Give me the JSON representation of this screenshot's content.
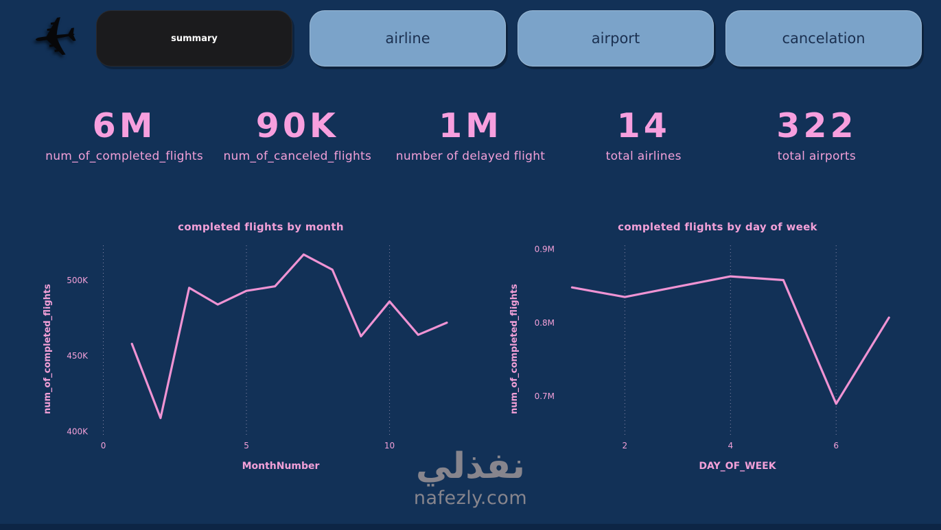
{
  "colors": {
    "background": "#123157",
    "accent_pink": "#f49bdb",
    "tab_blue": "#7ba3c9",
    "tab_active_bg": "#1b1b1d",
    "watermark_gray": "#87858d"
  },
  "nav": {
    "logo_icon": "airplane",
    "tabs": [
      {
        "label": "summary",
        "active": true
      },
      {
        "label": "airline",
        "active": false
      },
      {
        "label": "airport",
        "active": false
      },
      {
        "label": "cancelation",
        "active": false
      }
    ]
  },
  "kpis": [
    {
      "value": "6M",
      "label": "num_of_completed_flights"
    },
    {
      "value": "90K",
      "label": "num_of_canceled_flights"
    },
    {
      "value": "1M",
      "label": "number of delayed flight"
    },
    {
      "value": "14",
      "label": "total airlines"
    },
    {
      "value": "322",
      "label": "total airports"
    }
  ],
  "chart_data": [
    {
      "type": "line",
      "title": "completed flights by month",
      "xlabel": "MonthNumber",
      "ylabel": "num_of_completed_flights",
      "x": [
        1,
        2,
        3,
        4,
        5,
        6,
        7,
        8,
        9,
        10,
        11,
        12
      ],
      "values": [
        458000,
        409000,
        495000,
        484000,
        493000,
        496000,
        517000,
        507000,
        463000,
        486000,
        464000,
        472000
      ],
      "x_ticks": [
        0,
        5,
        10
      ],
      "x_tick_labels": [
        "0",
        "5",
        "10"
      ],
      "y_ticks": [
        400000,
        450000,
        500000
      ],
      "y_tick_labels": [
        "400K",
        "450K",
        "500K"
      ],
      "xlim": [
        -0.3,
        12.6
      ],
      "ylim": [
        398000,
        523000
      ],
      "grid": "vertical-dotted",
      "legend": "none"
    },
    {
      "type": "line",
      "title": "completed flights by day of week",
      "xlabel": "DAY_OF_WEEK",
      "ylabel": "num_of_completed_flights",
      "x": [
        1,
        2,
        3,
        4,
        5,
        6,
        7
      ],
      "values": [
        848000,
        835000,
        849000,
        863000,
        858000,
        690000,
        807000
      ],
      "x_ticks": [
        2,
        4,
        6
      ],
      "x_tick_labels": [
        "2",
        "4",
        "6"
      ],
      "y_ticks": [
        700000,
        800000,
        900000
      ],
      "y_tick_labels": [
        "0.7M",
        "0.8M",
        "0.9M"
      ],
      "xlim": [
        0.8,
        7.4
      ],
      "ylim": [
        648000,
        905000
      ],
      "grid": "vertical-dotted",
      "legend": "none"
    }
  ],
  "watermark": {
    "arabic": "نفذلي",
    "domain": "nafezly.com"
  }
}
